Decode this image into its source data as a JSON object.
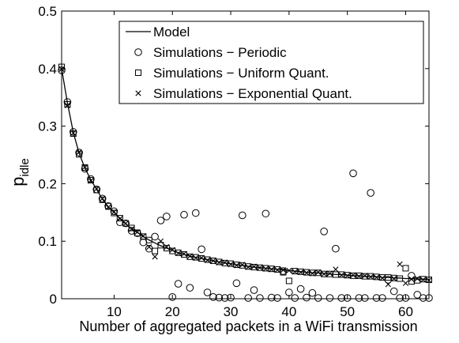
{
  "chart_data": {
    "type": "scatter",
    "title": "",
    "xlabel": "Number of aggregated packets in a WiFi transmission",
    "ylabel": "p",
    "ylabel_subscript": "idle",
    "xlim": [
      1,
      64
    ],
    "ylim": [
      0,
      0.5
    ],
    "xticks": [
      10,
      20,
      30,
      40,
      50,
      60
    ],
    "xtick_labels": [
      "10",
      "20",
      "30",
      "40",
      "50",
      "60"
    ],
    "yticks": [
      0,
      0.1,
      0.2,
      0.3,
      0.4,
      0.5
    ],
    "ytick_labels": [
      "0",
      "0.1",
      "0.2",
      "0.3",
      "0.4",
      "0.5"
    ],
    "grid": false,
    "legend_position": "top-right",
    "series": [
      {
        "name": "Model",
        "marker": "line",
        "x": [
          1,
          2,
          3,
          4,
          5,
          6,
          7,
          8,
          9,
          10,
          11,
          12,
          13,
          14,
          15,
          16,
          17,
          18,
          19,
          20,
          21,
          22,
          23,
          24,
          25,
          26,
          27,
          28,
          29,
          30,
          31,
          32,
          33,
          34,
          35,
          36,
          37,
          38,
          39,
          40,
          41,
          42,
          43,
          44,
          45,
          46,
          47,
          48,
          49,
          50,
          51,
          52,
          53,
          54,
          55,
          56,
          57,
          58,
          59,
          60,
          61,
          62,
          63,
          64
        ],
        "y": [
          0.4,
          0.34,
          0.289,
          0.253,
          0.227,
          0.207,
          0.19,
          0.173,
          0.16,
          0.15,
          0.14,
          0.13,
          0.122,
          0.115,
          0.108,
          0.102,
          0.097,
          0.092,
          0.088,
          0.084,
          0.08,
          0.077,
          0.074,
          0.072,
          0.07,
          0.068,
          0.066,
          0.064,
          0.062,
          0.061,
          0.059,
          0.058,
          0.056,
          0.055,
          0.054,
          0.053,
          0.052,
          0.051,
          0.05,
          0.049,
          0.048,
          0.047,
          0.046,
          0.045,
          0.045,
          0.044,
          0.043,
          0.042,
          0.042,
          0.041,
          0.04,
          0.04,
          0.039,
          0.039,
          0.038,
          0.037,
          0.037,
          0.036,
          0.036,
          0.035,
          0.035,
          0.034,
          0.034,
          0.033
        ]
      },
      {
        "name": "Simulations − Periodic",
        "marker": "circle",
        "x": [
          1,
          2,
          3,
          4,
          5,
          6,
          7,
          8,
          9,
          10,
          11,
          12,
          13,
          14,
          15,
          16,
          17,
          18,
          19,
          20,
          21,
          22,
          23,
          24,
          25,
          26,
          27,
          28,
          29,
          30,
          31,
          32,
          33,
          34,
          35,
          36,
          37,
          38,
          39,
          40,
          41,
          42,
          43,
          44,
          45,
          46,
          47,
          48,
          49,
          50,
          51,
          52,
          53,
          54,
          55,
          56,
          57,
          58,
          59,
          60,
          61,
          62,
          63,
          64
        ],
        "y": [
          0.397,
          0.342,
          0.29,
          0.254,
          0.226,
          0.208,
          0.19,
          0.174,
          0.161,
          0.152,
          0.133,
          0.131,
          0.118,
          0.114,
          0.098,
          0.087,
          0.108,
          0.136,
          0.143,
          0.003,
          0.026,
          0.146,
          0.019,
          0.149,
          0.086,
          0.011,
          0.003,
          0.002,
          0.0,
          0.002,
          0.027,
          0.145,
          0.0,
          0.015,
          0.0,
          0.148,
          0.002,
          0.0,
          0.048,
          0.011,
          0.0,
          0.017,
          0.002,
          0.01,
          0.001,
          0.117,
          0.0,
          0.087,
          0.0,
          0.0,
          0.218,
          0.0,
          0.0,
          0.184,
          0.0,
          0.0,
          0.033,
          0.013,
          0.0,
          0.001,
          0.04,
          0.007,
          0.0,
          0.0
        ]
      },
      {
        "name": "Simulations − Uniform Quant.",
        "marker": "square",
        "x": [
          1,
          2,
          3,
          4,
          5,
          6,
          7,
          8,
          9,
          10,
          11,
          12,
          13,
          14,
          15,
          16,
          17,
          18,
          19,
          20,
          21,
          22,
          23,
          24,
          25,
          26,
          27,
          28,
          29,
          30,
          31,
          32,
          33,
          34,
          35,
          36,
          37,
          38,
          39,
          40,
          41,
          42,
          43,
          44,
          45,
          46,
          47,
          48,
          49,
          50,
          51,
          52,
          53,
          54,
          55,
          56,
          57,
          58,
          59,
          60,
          61,
          62,
          63,
          64
        ],
        "y": [
          0.403,
          0.338,
          0.287,
          0.251,
          0.228,
          0.206,
          0.189,
          0.172,
          0.161,
          0.149,
          0.14,
          0.131,
          0.123,
          0.114,
          0.108,
          0.102,
          0.083,
          0.093,
          0.088,
          0.083,
          0.08,
          0.077,
          0.073,
          0.072,
          0.07,
          0.068,
          0.066,
          0.064,
          0.062,
          0.061,
          0.059,
          0.058,
          0.056,
          0.055,
          0.054,
          0.053,
          0.052,
          0.051,
          0.046,
          0.031,
          0.048,
          0.047,
          0.046,
          0.045,
          0.045,
          0.043,
          0.043,
          0.042,
          0.042,
          0.041,
          0.04,
          0.04,
          0.039,
          0.039,
          0.038,
          0.037,
          0.037,
          0.036,
          0.035,
          0.053,
          0.03,
          0.032,
          0.034,
          0.033
        ]
      },
      {
        "name": "Simulations − Exponential Quant.",
        "marker": "x",
        "x": [
          1,
          2,
          3,
          4,
          5,
          6,
          7,
          8,
          9,
          10,
          11,
          12,
          13,
          14,
          15,
          16,
          17,
          18,
          19,
          20,
          21,
          22,
          23,
          24,
          25,
          26,
          27,
          28,
          29,
          30,
          31,
          32,
          33,
          34,
          35,
          36,
          37,
          38,
          39,
          40,
          41,
          42,
          43,
          44,
          45,
          46,
          47,
          48,
          49,
          50,
          51,
          52,
          53,
          54,
          55,
          56,
          57,
          58,
          59,
          60,
          61,
          62,
          63,
          64
        ],
        "y": [
          0.399,
          0.336,
          0.288,
          0.255,
          0.229,
          0.205,
          0.191,
          0.174,
          0.159,
          0.151,
          0.139,
          0.131,
          0.121,
          0.116,
          0.109,
          0.09,
          0.073,
          0.1,
          0.09,
          0.085,
          0.079,
          0.078,
          0.074,
          0.071,
          0.071,
          0.067,
          0.066,
          0.063,
          0.063,
          0.06,
          0.058,
          0.059,
          0.055,
          0.056,
          0.054,
          0.052,
          0.051,
          0.05,
          0.05,
          0.049,
          0.047,
          0.046,
          0.045,
          0.044,
          0.046,
          0.043,
          0.044,
          0.051,
          0.041,
          0.04,
          0.041,
          0.039,
          0.04,
          0.038,
          0.037,
          0.036,
          0.025,
          0.035,
          0.06,
          0.027,
          0.034,
          0.035,
          0.033,
          0.032
        ]
      }
    ]
  }
}
